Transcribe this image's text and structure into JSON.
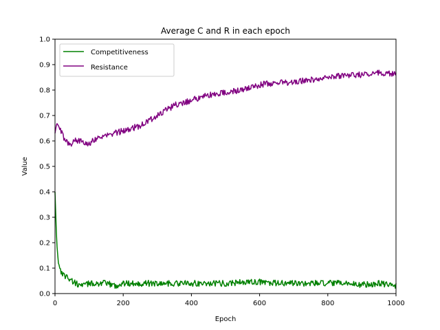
{
  "chart_data": {
    "type": "line",
    "title": "Average C and R in each epoch",
    "xlabel": "Epoch",
    "ylabel": "Value",
    "xlim": [
      0,
      1000
    ],
    "ylim": [
      0.0,
      1.0
    ],
    "xticks": [
      "0",
      "200",
      "400",
      "600",
      "800",
      "1000"
    ],
    "yticks": [
      "0.0",
      "0.1",
      "0.2",
      "0.3",
      "0.4",
      "0.5",
      "0.6",
      "0.7",
      "0.8",
      "0.9",
      "1.0"
    ],
    "grid": false,
    "legend_position": "top-left",
    "series": [
      {
        "name": "Competitiveness",
        "color": "#008000",
        "points": [
          [
            0,
            0.4
          ],
          [
            5,
            0.2
          ],
          [
            10,
            0.12
          ],
          [
            20,
            0.08
          ],
          [
            30,
            0.07
          ],
          [
            40,
            0.06
          ],
          [
            50,
            0.05
          ],
          [
            60,
            0.04
          ],
          [
            80,
            0.03
          ],
          [
            100,
            0.04
          ],
          [
            120,
            0.04
          ],
          [
            150,
            0.04
          ],
          [
            180,
            0.03
          ],
          [
            200,
            0.04
          ],
          [
            250,
            0.04
          ],
          [
            300,
            0.04
          ],
          [
            350,
            0.04
          ],
          [
            400,
            0.04
          ],
          [
            450,
            0.04
          ],
          [
            500,
            0.04
          ],
          [
            550,
            0.045
          ],
          [
            600,
            0.045
          ],
          [
            650,
            0.04
          ],
          [
            700,
            0.04
          ],
          [
            750,
            0.04
          ],
          [
            800,
            0.04
          ],
          [
            850,
            0.04
          ],
          [
            900,
            0.035
          ],
          [
            950,
            0.04
          ],
          [
            1000,
            0.03
          ]
        ]
      },
      {
        "name": "Resistance",
        "color": "#800080",
        "points": [
          [
            0,
            0.63
          ],
          [
            5,
            0.67
          ],
          [
            10,
            0.66
          ],
          [
            20,
            0.63
          ],
          [
            30,
            0.6
          ],
          [
            40,
            0.59
          ],
          [
            50,
            0.59
          ],
          [
            60,
            0.6
          ],
          [
            80,
            0.6
          ],
          [
            100,
            0.59
          ],
          [
            120,
            0.61
          ],
          [
            150,
            0.62
          ],
          [
            200,
            0.64
          ],
          [
            250,
            0.66
          ],
          [
            300,
            0.7
          ],
          [
            350,
            0.74
          ],
          [
            400,
            0.76
          ],
          [
            450,
            0.78
          ],
          [
            500,
            0.79
          ],
          [
            550,
            0.8
          ],
          [
            600,
            0.82
          ],
          [
            650,
            0.83
          ],
          [
            700,
            0.83
          ],
          [
            750,
            0.84
          ],
          [
            800,
            0.85
          ],
          [
            850,
            0.86
          ],
          [
            900,
            0.86
          ],
          [
            950,
            0.87
          ],
          [
            1000,
            0.86
          ]
        ]
      }
    ]
  }
}
